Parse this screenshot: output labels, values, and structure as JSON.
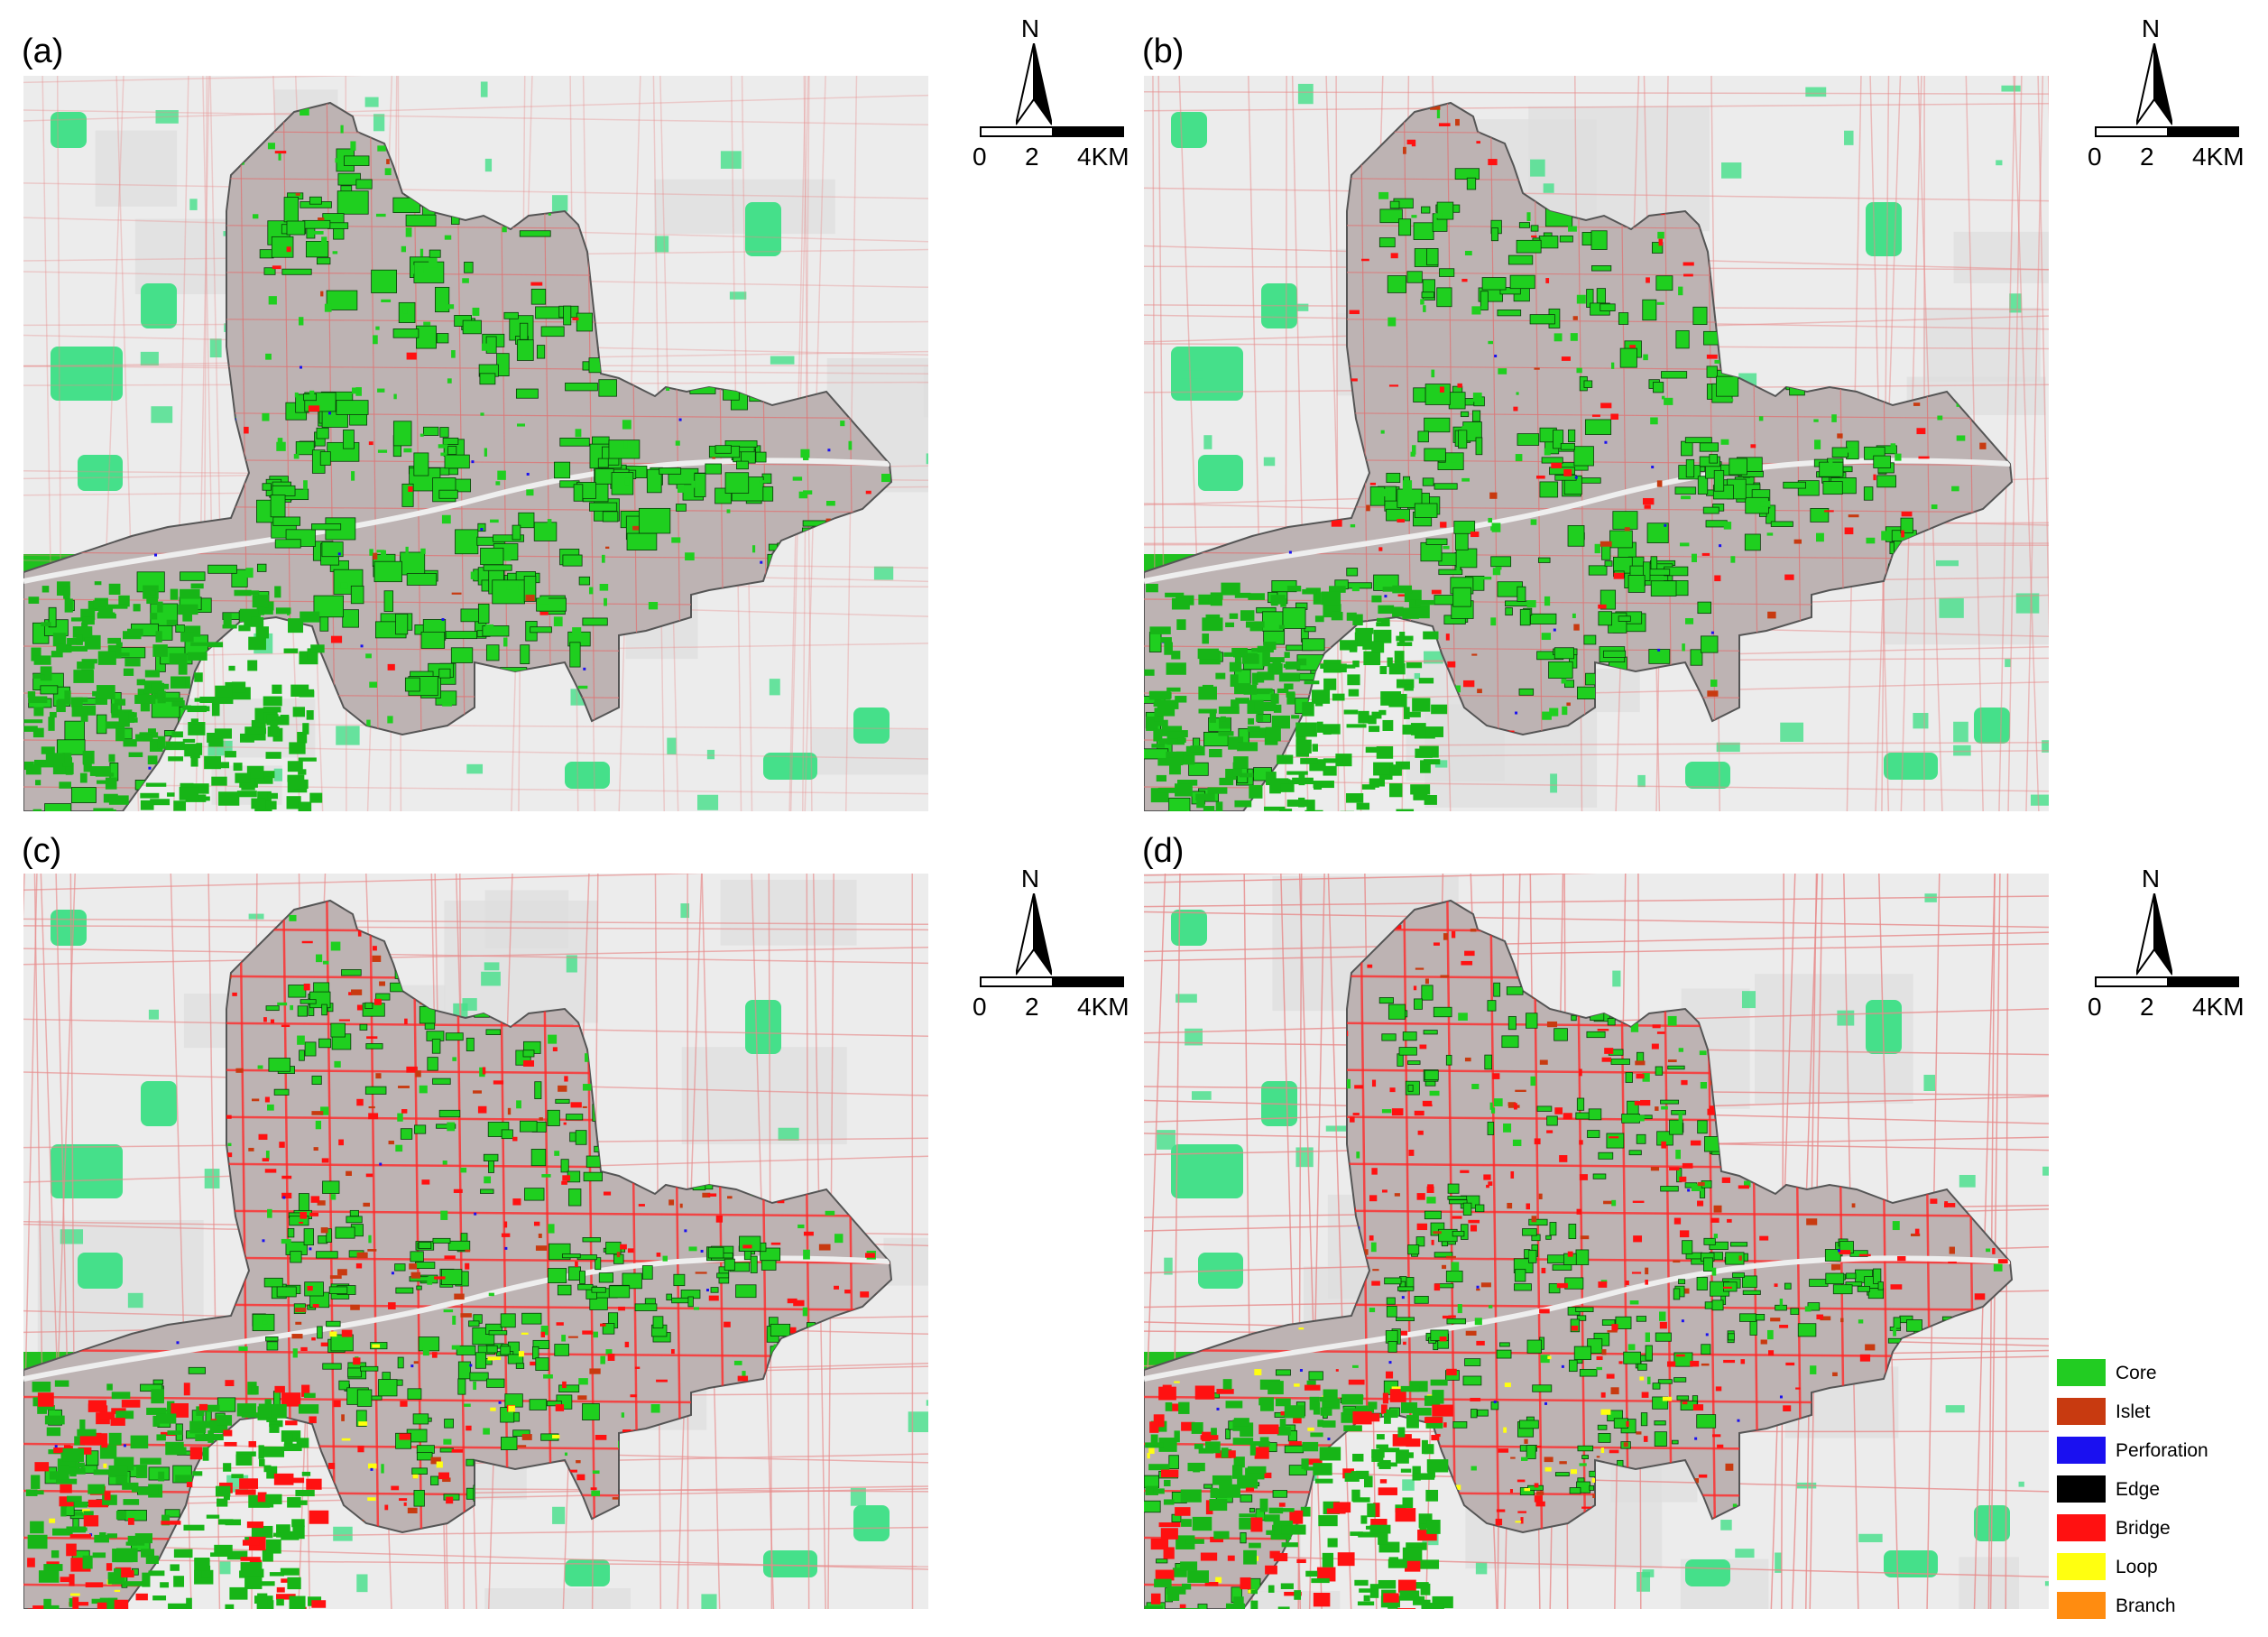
{
  "panels": [
    {
      "id": "a",
      "label": "(a)"
    },
    {
      "id": "b",
      "label": "(b)"
    },
    {
      "id": "c",
      "label": "(c)"
    },
    {
      "id": "d",
      "label": "(d)"
    }
  ],
  "north_arrow": {
    "letter": "N"
  },
  "scale_bar": {
    "ticks": [
      "0",
      "2",
      "4KM"
    ]
  },
  "legend": {
    "items": [
      {
        "label": "Core",
        "color": "#22cc22"
      },
      {
        "label": "Islet",
        "color": "#c83a10"
      },
      {
        "label": "Perforation",
        "color": "#1a10f0"
      },
      {
        "label": "Edge",
        "color": "#000000"
      },
      {
        "label": "Bridge",
        "color": "#ff1111"
      },
      {
        "label": "Loop",
        "color": "#ffff10"
      },
      {
        "label": "Branch",
        "color": "#ff8c10"
      }
    ]
  },
  "colors": {
    "background_map": "#ededed",
    "study_area": "#bdb3b3",
    "outside_green": "#45e08a",
    "core": "#22cc22",
    "bridge": "#ff1111",
    "road": "#f2a8a8"
  }
}
